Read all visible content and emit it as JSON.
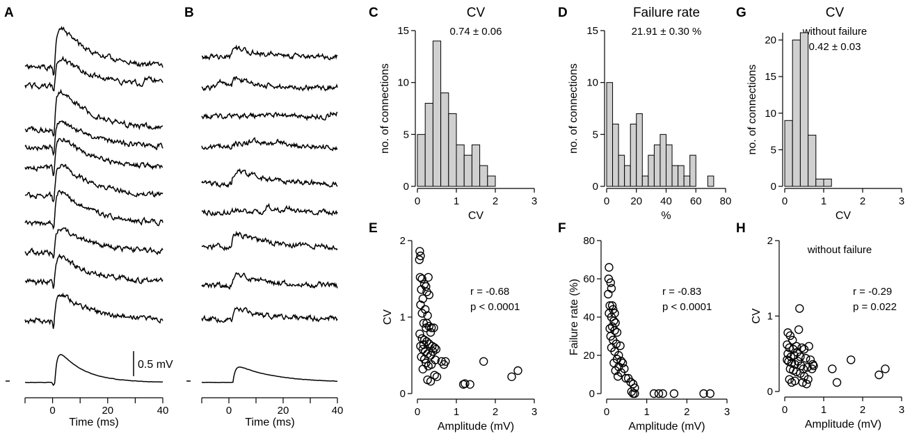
{
  "panels": {
    "A": {
      "label": "A",
      "xlabel": "Time (ms)",
      "xticks": [
        0,
        20,
        40
      ],
      "scale_bar": "0.5 mV"
    },
    "B": {
      "label": "B",
      "xlabel": "Time (ms)",
      "xticks": [
        0,
        20,
        40
      ]
    }
  },
  "chart_data": [
    {
      "id": "C",
      "label": "C",
      "type": "bar",
      "title": "CV",
      "subtitle": "0.74 ± 0.06",
      "xlabel": "CV",
      "ylabel": "no. of connections",
      "xlim": [
        0,
        3
      ],
      "ylim": [
        0,
        15
      ],
      "xticks": [
        0,
        1,
        2,
        3
      ],
      "yticks": [
        0,
        5,
        10,
        15
      ],
      "bin_width": 0.2,
      "bin_start": 0,
      "values": [
        5,
        8,
        14,
        9,
        7,
        4,
        3,
        4,
        2,
        1
      ]
    },
    {
      "id": "D",
      "label": "D",
      "type": "bar",
      "title": "Failure rate",
      "subtitle": "21.91 ± 0.30 %",
      "xlabel": "%",
      "ylabel": "no. of connections",
      "xlim": [
        0,
        80
      ],
      "ylim": [
        0,
        15
      ],
      "xticks": [
        0,
        20,
        40,
        60,
        80
      ],
      "yticks": [
        0,
        5,
        10,
        15
      ],
      "bin_width": 4,
      "bin_start": 0,
      "values": [
        10,
        6,
        3,
        2,
        6,
        7,
        1,
        3,
        4,
        5,
        4,
        2,
        2,
        1,
        3,
        0,
        0,
        1
      ]
    },
    {
      "id": "G",
      "label": "G",
      "type": "bar",
      "title": "CV",
      "subtitle": "without failure",
      "subtitle2": "0.42 ± 0.03",
      "xlabel": "CV",
      "ylabel": "no. of connections",
      "xlim": [
        0,
        3
      ],
      "ylim": [
        0,
        21
      ],
      "xticks": [
        0,
        1,
        2,
        3
      ],
      "yticks": [
        0,
        5,
        10,
        15,
        20
      ],
      "bin_width": 0.2,
      "bin_start": 0,
      "values": [
        9,
        20,
        21,
        7,
        1,
        1
      ]
    },
    {
      "id": "E",
      "label": "E",
      "type": "scatter",
      "xlabel": "Amplitude (mV)",
      "ylabel": "CV",
      "xlim": [
        0,
        3
      ],
      "ylim": [
        0,
        2
      ],
      "xticks": [
        0,
        1,
        2,
        3
      ],
      "yticks": [
        0,
        1,
        2
      ],
      "annotation": [
        "r = -0.68",
        "p < 0.0001"
      ],
      "points": [
        [
          0.06,
          1.86
        ],
        [
          0.08,
          1.8
        ],
        [
          0.05,
          1.75
        ],
        [
          0.07,
          1.52
        ],
        [
          0.12,
          1.5
        ],
        [
          0.18,
          1.43
        ],
        [
          0.22,
          1.4
        ],
        [
          0.28,
          1.52
        ],
        [
          0.1,
          1.36
        ],
        [
          0.24,
          1.33
        ],
        [
          0.3,
          1.29
        ],
        [
          0.14,
          1.24
        ],
        [
          0.08,
          1.16
        ],
        [
          0.2,
          1.1
        ],
        [
          0.12,
          1.05
        ],
        [
          0.26,
          1.02
        ],
        [
          0.16,
          0.92
        ],
        [
          0.22,
          0.86
        ],
        [
          0.3,
          0.88
        ],
        [
          0.36,
          0.86
        ],
        [
          0.42,
          0.86
        ],
        [
          0.34,
          0.8
        ],
        [
          0.06,
          0.78
        ],
        [
          0.12,
          0.72
        ],
        [
          0.18,
          0.7
        ],
        [
          0.24,
          0.68
        ],
        [
          0.3,
          0.65
        ],
        [
          0.38,
          0.62
        ],
        [
          0.44,
          0.6
        ],
        [
          0.48,
          0.58
        ],
        [
          0.08,
          0.62
        ],
        [
          0.14,
          0.58
        ],
        [
          0.2,
          0.55
        ],
        [
          0.26,
          0.52
        ],
        [
          0.34,
          0.5
        ],
        [
          0.4,
          0.55
        ],
        [
          0.1,
          0.48
        ],
        [
          0.18,
          0.45
        ],
        [
          0.22,
          0.4
        ],
        [
          0.28,
          0.36
        ],
        [
          0.36,
          0.38
        ],
        [
          0.46,
          0.44
        ],
        [
          0.62,
          0.42
        ],
        [
          0.68,
          0.38
        ],
        [
          0.72,
          0.42
        ],
        [
          0.26,
          0.18
        ],
        [
          0.34,
          0.16
        ],
        [
          0.44,
          0.24
        ],
        [
          0.5,
          0.22
        ],
        [
          0.14,
          0.32
        ],
        [
          0.16,
          0.64
        ],
        [
          0.24,
          0.92
        ],
        [
          1.18,
          0.12
        ],
        [
          1.22,
          0.13
        ],
        [
          1.35,
          0.12
        ],
        [
          1.7,
          0.42
        ],
        [
          2.42,
          0.22
        ],
        [
          2.58,
          0.3
        ]
      ]
    },
    {
      "id": "F",
      "label": "F",
      "type": "scatter",
      "xlabel": "Amplitude (mV)",
      "ylabel": "Failure rate (%)",
      "xlim": [
        0,
        3
      ],
      "ylim": [
        0,
        80
      ],
      "xticks": [
        0,
        1,
        2,
        3
      ],
      "yticks": [
        0,
        20,
        40,
        60,
        80
      ],
      "annotation": [
        "r = -0.83",
        "p < 0.0001"
      ],
      "points": [
        [
          0.06,
          66
        ],
        [
          0.05,
          60
        ],
        [
          0.1,
          58
        ],
        [
          0.12,
          55
        ],
        [
          0.04,
          52
        ],
        [
          0.08,
          46
        ],
        [
          0.16,
          44
        ],
        [
          0.06,
          42
        ],
        [
          0.12,
          40
        ],
        [
          0.18,
          38
        ],
        [
          0.22,
          37
        ],
        [
          0.14,
          35
        ],
        [
          0.2,
          33
        ],
        [
          0.08,
          34
        ],
        [
          0.26,
          32
        ],
        [
          0.16,
          28
        ],
        [
          0.24,
          26
        ],
        [
          0.34,
          25
        ],
        [
          0.2,
          22
        ],
        [
          0.3,
          20
        ],
        [
          0.12,
          24
        ],
        [
          0.26,
          18
        ],
        [
          0.36,
          17
        ],
        [
          0.18,
          16
        ],
        [
          0.4,
          16
        ],
        [
          0.3,
          14
        ],
        [
          0.22,
          12
        ],
        [
          0.44,
          13
        ],
        [
          0.36,
          11
        ],
        [
          0.28,
          9
        ],
        [
          0.48,
          8
        ],
        [
          0.54,
          8
        ],
        [
          0.6,
          6
        ],
        [
          0.66,
          5
        ],
        [
          0.7,
          3
        ],
        [
          0.62,
          1
        ],
        [
          0.66,
          0
        ],
        [
          0.7,
          0
        ],
        [
          1.18,
          0
        ],
        [
          1.3,
          0
        ],
        [
          1.4,
          0
        ],
        [
          1.68,
          0
        ],
        [
          2.42,
          0
        ],
        [
          2.58,
          0
        ],
        [
          0.1,
          30
        ],
        [
          0.14,
          46
        ],
        [
          0.2,
          42
        ]
      ]
    },
    {
      "id": "H",
      "label": "H",
      "type": "scatter",
      "xlabel": "Amplitude (mV)",
      "ylabel": "CV",
      "subtitle": "without failure",
      "xlim": [
        0,
        3
      ],
      "ylim": [
        0,
        2
      ],
      "xticks": [
        0,
        1,
        2,
        3
      ],
      "yticks": [
        0,
        1,
        2
      ],
      "annotation": [
        "r = -0.29",
        "p = 0.022"
      ],
      "points": [
        [
          0.38,
          1.1
        ],
        [
          0.08,
          0.78
        ],
        [
          0.14,
          0.74
        ],
        [
          0.36,
          0.82
        ],
        [
          0.2,
          0.68
        ],
        [
          0.06,
          0.62
        ],
        [
          0.12,
          0.58
        ],
        [
          0.22,
          0.56
        ],
        [
          0.3,
          0.6
        ],
        [
          0.44,
          0.58
        ],
        [
          0.5,
          0.56
        ],
        [
          0.62,
          0.6
        ],
        [
          0.08,
          0.5
        ],
        [
          0.16,
          0.46
        ],
        [
          0.24,
          0.48
        ],
        [
          0.32,
          0.52
        ],
        [
          0.4,
          0.46
        ],
        [
          0.54,
          0.44
        ],
        [
          0.66,
          0.42
        ],
        [
          0.72,
          0.36
        ],
        [
          0.1,
          0.4
        ],
        [
          0.18,
          0.38
        ],
        [
          0.26,
          0.36
        ],
        [
          0.34,
          0.4
        ],
        [
          0.42,
          0.34
        ],
        [
          0.48,
          0.3
        ],
        [
          0.58,
          0.32
        ],
        [
          0.7,
          0.3
        ],
        [
          0.74,
          0.34
        ],
        [
          0.06,
          0.42
        ],
        [
          0.14,
          0.3
        ],
        [
          0.22,
          0.28
        ],
        [
          0.3,
          0.26
        ],
        [
          0.4,
          0.24
        ],
        [
          0.5,
          0.2
        ],
        [
          0.6,
          0.16
        ],
        [
          0.12,
          0.16
        ],
        [
          0.18,
          0.12
        ],
        [
          0.26,
          0.14
        ],
        [
          0.46,
          0.12
        ],
        [
          0.56,
          0.1
        ],
        [
          1.22,
          0.3
        ],
        [
          1.34,
          0.12
        ],
        [
          1.7,
          0.42
        ],
        [
          2.42,
          0.22
        ],
        [
          2.58,
          0.3
        ]
      ]
    }
  ]
}
